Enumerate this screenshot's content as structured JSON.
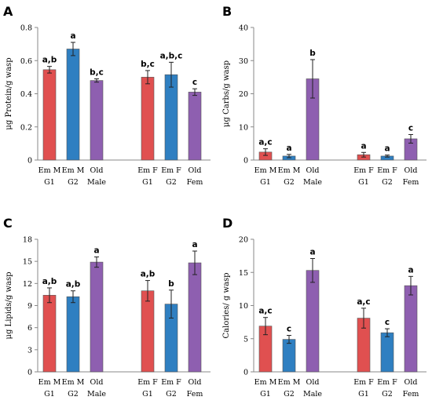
{
  "colors": {
    "red": "#e05050",
    "blue": "#2f7fc1",
    "purple": "#8e5fb0"
  },
  "chart_data": [
    {
      "panel": "A",
      "type": "bar",
      "ylabel": "μg Protein/g wasp",
      "ylim": [
        0,
        0.8
      ],
      "yticks": [
        "0",
        "0.2",
        "0.4",
        "0.6",
        "0.8"
      ],
      "ytick_values": [
        0,
        0.2,
        0.4,
        0.6,
        0.8
      ],
      "categories": [
        {
          "line1": "Em M",
          "line2": "G1"
        },
        {
          "line1": "Em M",
          "line2": "G2"
        },
        {
          "line1": "Old",
          "line2": "Male"
        },
        {
          "line1": "Em F",
          "line2": "G1"
        },
        {
          "line1": "Em F",
          "line2": "G2"
        },
        {
          "line1": "Old",
          "line2": "Fem"
        }
      ],
      "values": [
        0.545,
        0.67,
        0.48,
        0.5,
        0.515,
        0.41
      ],
      "errors": [
        0.02,
        0.04,
        0.01,
        0.04,
        0.075,
        0.02
      ],
      "letters": [
        "a,b",
        "a",
        "b,c",
        "b,c",
        "a,b,c",
        "c"
      ]
    },
    {
      "panel": "B",
      "type": "bar",
      "ylabel": "μg Carbs/g wasp",
      "ylim": [
        0,
        40
      ],
      "yticks": [
        "0",
        "10",
        "20",
        "30",
        "40"
      ],
      "ytick_values": [
        0,
        10,
        20,
        30,
        40
      ],
      "categories": [
        {
          "line1": "Em M",
          "line2": "G1"
        },
        {
          "line1": "Em M",
          "line2": "G2"
        },
        {
          "line1": "Old",
          "line2": "Male"
        },
        {
          "line1": "Em F",
          "line2": "G1"
        },
        {
          "line1": "Em F",
          "line2": "G2"
        },
        {
          "line1": "Old",
          "line2": "Fem"
        }
      ],
      "values": [
        2.4,
        1.2,
        24.5,
        1.6,
        1.2,
        6.4
      ],
      "errors": [
        1.0,
        0.5,
        5.8,
        0.7,
        0.3,
        1.3
      ],
      "letters": [
        "a,c",
        "a",
        "b",
        "a",
        "a",
        "c"
      ]
    },
    {
      "panel": "C",
      "type": "bar",
      "ylabel": "μg Lipids/g wasp",
      "ylim": [
        0,
        18
      ],
      "yticks": [
        "0",
        "3",
        "6",
        "9",
        "12",
        "15",
        "18"
      ],
      "ytick_values": [
        0,
        3,
        6,
        9,
        12,
        15,
        18
      ],
      "categories": [
        {
          "line1": "Em M",
          "line2": "G1"
        },
        {
          "line1": "Em M",
          "line2": "G2"
        },
        {
          "line1": "Old",
          "line2": "Male"
        },
        {
          "line1": "Em F",
          "line2": "G1"
        },
        {
          "line1": "Em F",
          "line2": "G2"
        },
        {
          "line1": "Old",
          "line2": "Fem"
        }
      ],
      "values": [
        10.4,
        10.2,
        14.9,
        11.0,
        9.2,
        14.8
      ],
      "errors": [
        1.0,
        0.8,
        0.7,
        1.4,
        1.9,
        1.6
      ],
      "letters": [
        "a,b",
        "a,b",
        "a",
        "a,b",
        "b",
        "a"
      ]
    },
    {
      "panel": "D",
      "type": "bar",
      "ylabel": "Calories/ g wasp",
      "ylim": [
        0,
        20
      ],
      "yticks": [
        "0",
        "5",
        "10",
        "15",
        "20"
      ],
      "ytick_values": [
        0,
        5,
        10,
        15,
        20
      ],
      "categories": [
        {
          "line1": "Em M",
          "line2": "G1"
        },
        {
          "line1": "Em M",
          "line2": "G2"
        },
        {
          "line1": "Old",
          "line2": "Male"
        },
        {
          "line1": "Em F",
          "line2": "G1"
        },
        {
          "line1": "Em F",
          "line2": "G2"
        },
        {
          "line1": "Old",
          "line2": "Fem"
        }
      ],
      "values": [
        6.9,
        4.9,
        15.3,
        8.1,
        5.9,
        13.0
      ],
      "errors": [
        1.3,
        0.6,
        1.8,
        1.5,
        0.6,
        1.4
      ],
      "letters": [
        "a,c",
        "c",
        "a",
        "a,c",
        "c",
        "a"
      ]
    }
  ]
}
